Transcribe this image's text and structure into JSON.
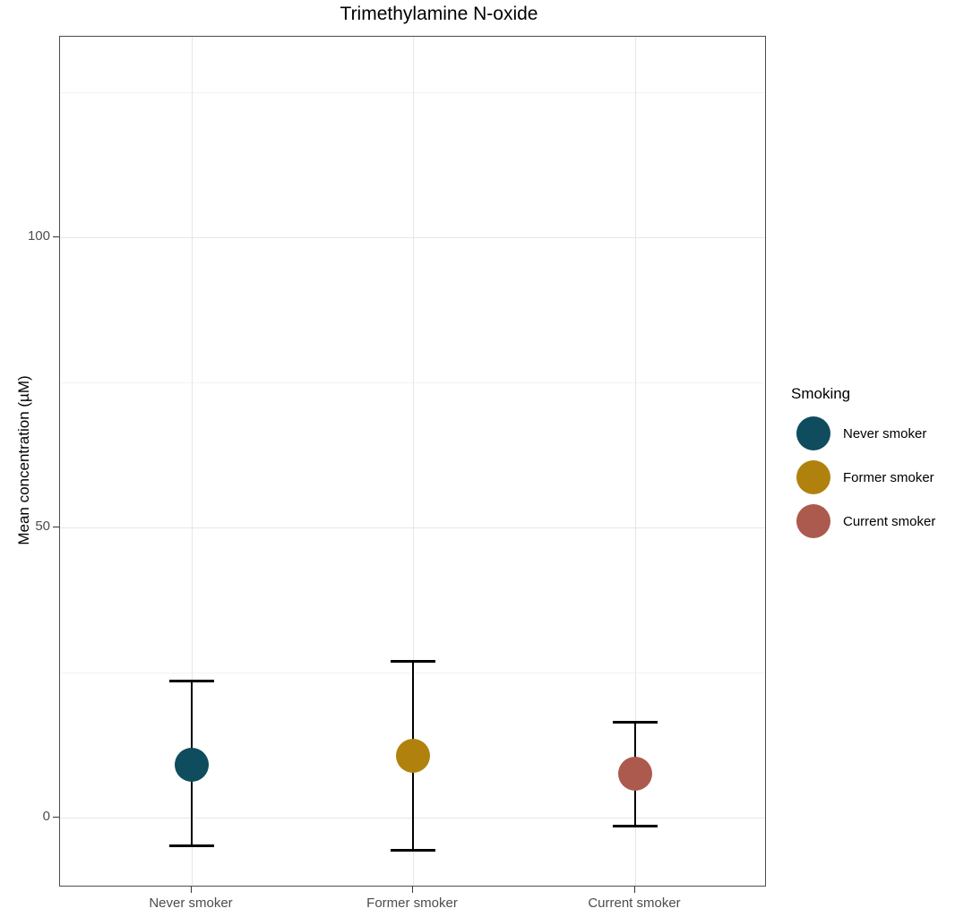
{
  "chart_data": {
    "type": "scatter",
    "subtype": "point-with-errorbars",
    "title": "Trimethylamine N-oxide",
    "xlabel": "",
    "ylabel": "Mean concentration (µM)",
    "categories": [
      "Never smoker",
      "Former smoker",
      "Current smoker"
    ],
    "series": [
      {
        "name": "Never smoker",
        "color": "#0E4C5E",
        "mean": 9.1,
        "ci_low": -4.8,
        "ci_high": 23.5
      },
      {
        "name": "Former smoker",
        "color": "#B0820D",
        "mean": 10.6,
        "ci_low": -5.6,
        "ci_high": 26.9
      },
      {
        "name": "Current smoker",
        "color": "#AC5A4E",
        "mean": 7.6,
        "ci_low": -1.4,
        "ci_high": 16.5
      }
    ],
    "y_ticks": [
      0,
      50,
      100
    ],
    "y_minor_ticks": [
      25,
      75,
      125
    ],
    "ylim": [
      -12,
      135
    ],
    "grid": true,
    "legend": {
      "title": "Smoking",
      "position": "right",
      "items": [
        {
          "label": "Never smoker",
          "color": "#0E4C5E"
        },
        {
          "label": "Former smoker",
          "color": "#B0820D"
        },
        {
          "label": "Current smoker",
          "color": "#AC5A4E"
        }
      ]
    }
  }
}
